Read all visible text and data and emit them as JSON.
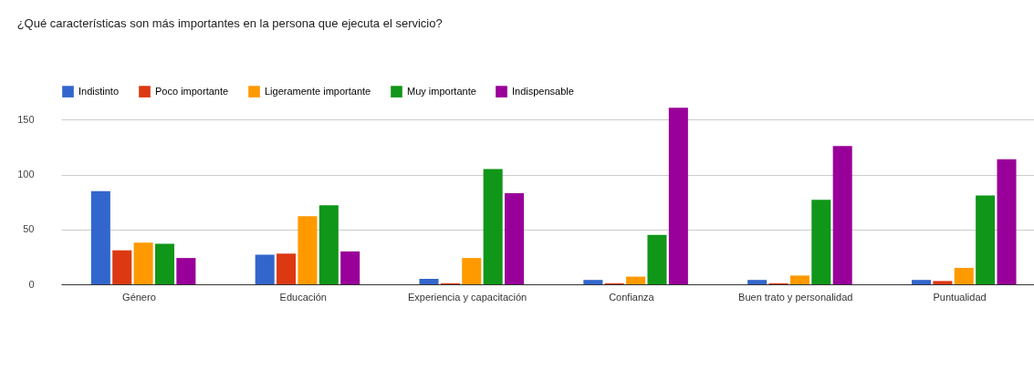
{
  "chart_data": {
    "type": "bar",
    "title": "¿Qué características son más importantes en la persona que ejecuta el servicio?",
    "categories": [
      "Género",
      "Educación",
      "Experiencia y capacitación",
      "Confianza",
      "Buen trato y personalidad",
      "Puntualidad"
    ],
    "series": [
      {
        "name": "Indistinto",
        "color": "#3366cc",
        "values": [
          85,
          27,
          5,
          4,
          4,
          4
        ]
      },
      {
        "name": "Poco importante",
        "color": "#dc3912",
        "values": [
          31,
          28,
          1,
          1,
          1,
          3
        ]
      },
      {
        "name": "Ligeramente importante",
        "color": "#ff9900",
        "values": [
          38,
          62,
          24,
          7,
          8,
          15
        ]
      },
      {
        "name": "Muy importante",
        "color": "#109618",
        "values": [
          37,
          72,
          105,
          45,
          77,
          81
        ]
      },
      {
        "name": "Indispensable",
        "color": "#990099",
        "values": [
          24,
          30,
          83,
          161,
          126,
          114
        ]
      }
    ],
    "ylim": [
      0,
      162
    ],
    "yticks": [
      0,
      50,
      100,
      150
    ],
    "grid": "y",
    "legend": "top left"
  }
}
